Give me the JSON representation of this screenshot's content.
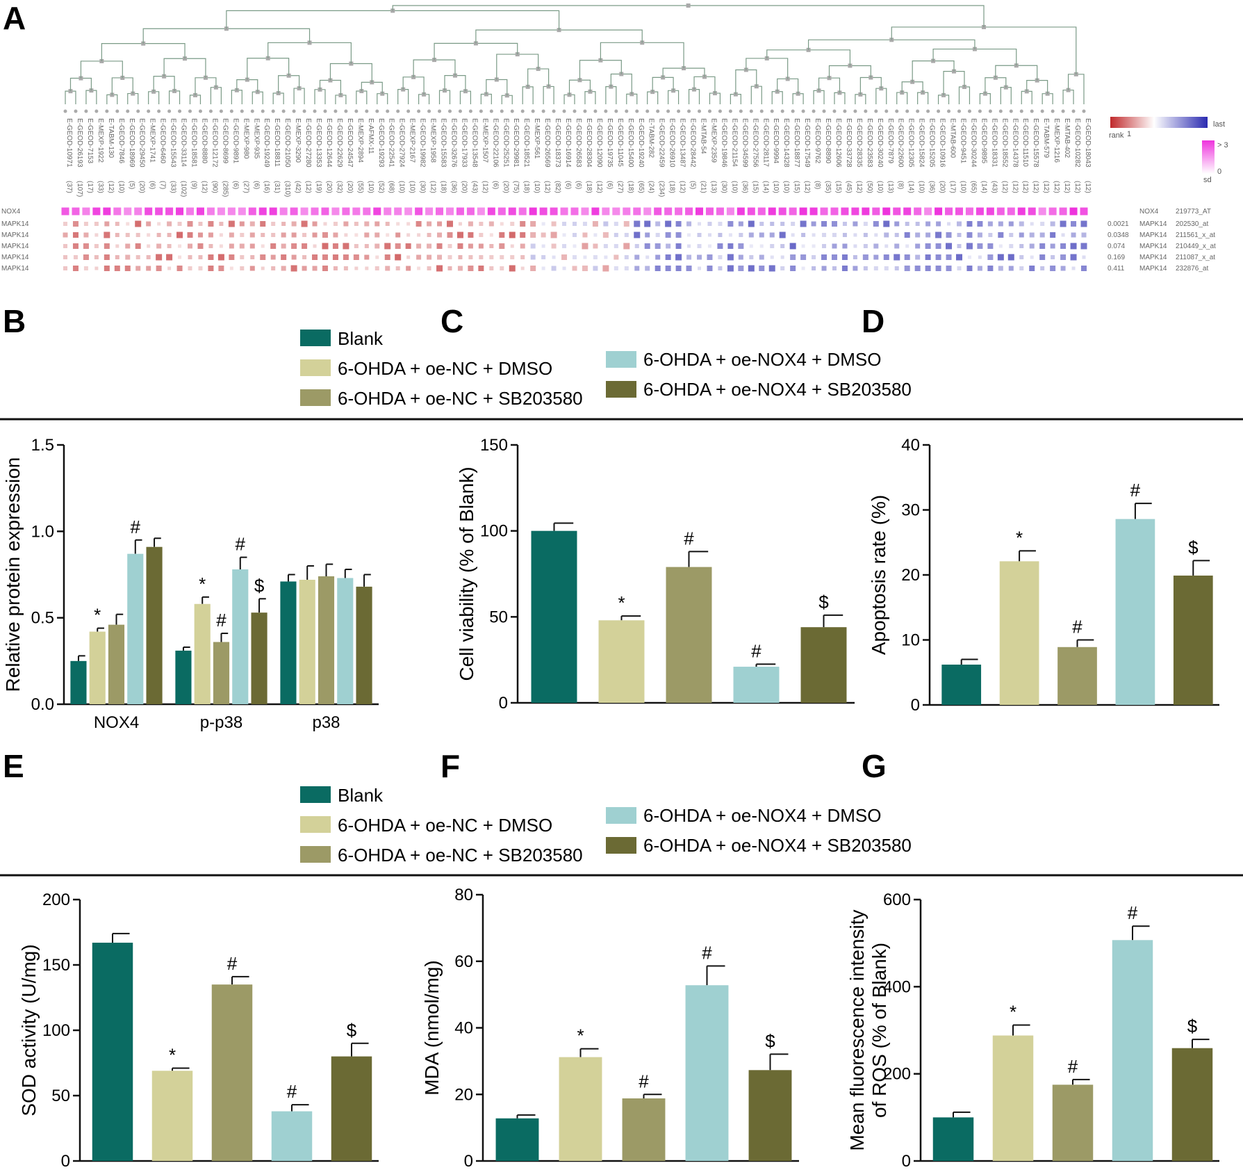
{
  "panel_labels": [
    "A",
    "B",
    "C",
    "D",
    "E",
    "F",
    "G"
  ],
  "colors": {
    "blank": "#0a6b62",
    "nc_dmso": "#d3d199",
    "nc_sb": "#9c9a66",
    "nox4_dmso": "#9fd0d1",
    "nox4_sb": "#6b6a34",
    "heat_red": "#c0292b",
    "heat_blue": "#2a2ab0",
    "heat_magenta": "#ee33dd"
  },
  "legend_bcd": {
    "items": [
      "Blank",
      "6-OHDA + oe-NC + DMSO",
      "6-OHDA + oe-NC + SB203580",
      "6-OHDA + oe-NOX4 + DMSO",
      "6-OHDA + oe-NOX4 + SB203580"
    ]
  },
  "legend_efg": {
    "items": [
      "Blank",
      "6-OHDA + oe-NC + DMSO",
      "6-OHDA + oe-NC + SB203580",
      "6-OHDA + oe-NOX4 + DMSO",
      "6-OHDA + oe-NOX4 + SB203580"
    ]
  },
  "heatmap": {
    "datasets": [
      "E-GEOD-10971",
      "E-GEOD-26193",
      "E-GEOD-7153",
      "E-MEXP-1922",
      "E-TABM-130",
      "E-GEOD-7846",
      "E-GEOD-18969",
      "E-GEOD-29450",
      "E-MEXP-1741",
      "E-GEOD-6460",
      "E-GEOD-15543",
      "E-GEOD-33114",
      "E-GEOD-18581",
      "E-GEOD-8880",
      "E-GEOD-12172",
      "E-GEOD-8699",
      "E-GEOD-9891",
      "E-MEXP-980",
      "E-MEXP-935",
      "E-GEOD-19249",
      "E-GEOD-18811",
      "E-GEOD-21050",
      "E-MEXP-3290",
      "E-GEOD-27280",
      "E-GEOD-13353",
      "E-GEOD-12644",
      "E-GEOD-22629",
      "E-GEOD-24547",
      "E-MEXP-2894",
      "E-AFMX-11",
      "E-GEOD-19293",
      "E-GEOD-22541",
      "E-GEOD-27924",
      "E-MEXP-2167",
      "E-GEOD-19982",
      "E-MEXP-1958",
      "E-GEOD-15583",
      "E-GEOD-32676",
      "E-GEOD-17933",
      "E-GEOD-13548",
      "E-MEXP-1507",
      "E-GEOD-22106",
      "E-GEOD-25251",
      "E-GEOD-29981",
      "E-GEOD-18521",
      "E-MEXP-561",
      "E-GEOD-26569",
      "E-GEOD-18373",
      "E-GEOD-16914",
      "E-GEOD-26583",
      "E-GEOD-28304",
      "E-GEOD-12090",
      "E-GEOD-19735",
      "E-GEOD-11045",
      "E-GEOD-15400",
      "E-GEOD-19240",
      "E-TABM-282",
      "E-GEOD-22459",
      "E-GEOD-26910",
      "E-GEOD-13487",
      "E-GEOD-28442",
      "E-MTAB-54",
      "E-MEXP-2359",
      "E-GEOD-19846",
      "E-GEOD-21154",
      "E-GEOD-34599",
      "E-GEOD-27556",
      "E-GEOD-28117",
      "E-GEOD-9994",
      "E-GEOD-14328",
      "E-GEOD-18877",
      "E-GEOD-17549",
      "E-GEOD-9762",
      "E-GEOD-8890",
      "E-GEOD-12606",
      "E-GEOD-33728",
      "E-GEOD-28335",
      "E-GEOD-23583",
      "E-GEOD-30240",
      "E-GEOD-7879",
      "E-GEOD-22600",
      "E-GEOD-12305",
      "E-GEOD-15824",
      "E-GEOD-15205",
      "E-GEOD-10916",
      "E-MTAB-600",
      "E-GEOD-9451",
      "E-GEOD-30244",
      "E-GEOD-9895",
      "E-GEOD-18331",
      "E-GEOD-18552",
      "E-GEOD-14378",
      "E-GEOD-11510",
      "E-GEOD-15578",
      "E-TABM-579",
      "E-MEXP-1216",
      "E-MTAB-402",
      "E-GEOD-10282",
      "E-GEOD-18043"
    ],
    "counts": [
      "(37)",
      "(107)",
      "(17)",
      "(33)",
      "(12)",
      "(10)",
      "(5)",
      "(20)",
      "(6)",
      "(7)",
      "(33)",
      "(102)",
      "(9)",
      "(12)",
      "(90)",
      "(285)",
      "(6)",
      "(27)",
      "(6)",
      "(16)",
      "(31)",
      "(310)",
      "(42)",
      "(12)",
      "(19)",
      "(20)",
      "(32)",
      "(20)",
      "(55)",
      "(10)",
      "(52)",
      "(68)",
      "(10)",
      "(10)",
      "(30)",
      "(12)",
      "(18)",
      "(36)",
      "(20)",
      "(43)",
      "(12)",
      "(6)",
      "(20)",
      "(75)",
      "(18)",
      "(10)",
      "(12)",
      "(82)",
      "(6)",
      "(6)",
      "(18)",
      "(12)",
      "(6)",
      "(27)",
      "(18)",
      "(65)",
      "(24)",
      "(234)",
      "(18)",
      "(12)",
      "(5)",
      "(21)",
      "(13)",
      "(30)",
      "(10)",
      "(36)",
      "(15)",
      "(14)",
      "(10)",
      "(10)",
      "(15)",
      "(12)",
      "(8)",
      "(35)",
      "(15)",
      "(45)",
      "(12)",
      "(50)",
      "(10)",
      "(13)",
      "(8)",
      "(14)",
      "(10)",
      "(36)",
      "(20)",
      "(17)",
      "(10)",
      "(65)",
      "(14)",
      "(43)",
      "(12)",
      "(12)",
      "(12)",
      "(12)",
      "(12)",
      "(12)",
      "(12)",
      "(12)",
      "(12)"
    ],
    "row_labels": [
      "NOX4",
      "MAPK14",
      "MAPK14",
      "MAPK14",
      "MAPK14",
      "MAPK14"
    ],
    "pvalues": [
      "",
      "0.0021",
      "0.0348",
      "0.074",
      "0.169",
      "0.411"
    ],
    "gene_names": [
      "NOX4",
      "MAPK14",
      "MAPK14",
      "MAPK14",
      "MAPK14",
      "MAPK14"
    ],
    "probes": [
      "219773_AT",
      "202530_at",
      "211561_x_at",
      "210449_x_at",
      "211087_x_at",
      "232876_at"
    ],
    "legend": {
      "rank_low": "1",
      "rank_high": "last",
      "rank_label": "rank",
      "sd_high": "> 3",
      "sd_low": "0",
      "sd_label": "sd"
    }
  },
  "chart_data": [
    {
      "id": "B",
      "type": "bar",
      "categories": [
        "NOX4",
        "p-p38",
        "p38"
      ],
      "series": [
        {
          "name": "Blank",
          "values": [
            0.25,
            0.31,
            0.71
          ],
          "errors": [
            0.03,
            0.02,
            0.04
          ]
        },
        {
          "name": "6-OHDA + oe-NC + DMSO",
          "values": [
            0.42,
            0.58,
            0.72
          ],
          "errors": [
            0.02,
            0.04,
            0.08
          ]
        },
        {
          "name": "6-OHDA + oe-NC + SB203580",
          "values": [
            0.46,
            0.36,
            0.74
          ],
          "errors": [
            0.06,
            0.05,
            0.07
          ]
        },
        {
          "name": "6-OHDA + oe-NOX4 + DMSO",
          "values": [
            0.87,
            0.78,
            0.73
          ],
          "errors": [
            0.08,
            0.07,
            0.05
          ]
        },
        {
          "name": "6-OHDA + oe-NOX4 + SB203580",
          "values": [
            0.91,
            0.53,
            0.68
          ],
          "errors": [
            0.05,
            0.08,
            0.07
          ]
        }
      ],
      "annotations": [
        [
          "",
          "",
          "",
          "",
          " "
        ],
        [
          "",
          "*",
          "#",
          "#",
          "$"
        ],
        [
          "",
          "",
          "",
          "",
          ""
        ]
      ],
      "ann_by_cat": {
        "NOX4": {
          "1": "*",
          "3": "#"
        },
        "p-p38": {
          "1": "*",
          "2": "#",
          "3": "#",
          "4": "$"
        }
      },
      "ylabel": "Relative protein expression",
      "ylim": [
        0,
        1.5
      ],
      "yticks": [
        "0.0",
        "0.5",
        "1.0",
        "1.5"
      ]
    },
    {
      "id": "C",
      "type": "bar",
      "categories": [
        "Blank",
        "6-OHDA + oe-NC + DMSO",
        "6-OHDA + oe-NC + SB203580",
        "6-OHDA + oe-NOX4 + DMSO",
        "6-OHDA + oe-NOX4 + SB203580"
      ],
      "values": [
        100,
        48,
        79,
        21,
        44
      ],
      "errors": [
        4.5,
        2.5,
        9,
        1.5,
        7
      ],
      "annotations": [
        "",
        "*",
        "#",
        "#",
        "$"
      ],
      "ylabel": "Cell viability (% of Blank)",
      "ylim": [
        0,
        150
      ],
      "yticks": [
        "0",
        "50",
        "100",
        "150"
      ]
    },
    {
      "id": "D",
      "type": "bar",
      "categories": [
        "Blank",
        "6-OHDA + oe-NC + DMSO",
        "6-OHDA + oe-NC + SB203580",
        "6-OHDA + oe-NOX4 + DMSO",
        "6-OHDA + oe-NOX4 + SB203580"
      ],
      "values": [
        6.2,
        22.1,
        8.9,
        28.6,
        19.9
      ],
      "errors": [
        0.8,
        1.6,
        1.1,
        2.4,
        2.3
      ],
      "annotations": [
        "",
        "*",
        "#",
        "#",
        "$"
      ],
      "ylabel": "Apoptosis rate (%)",
      "ylim": [
        0,
        40
      ],
      "yticks": [
        "0",
        "10",
        "20",
        "30",
        "40"
      ]
    },
    {
      "id": "E",
      "type": "bar",
      "categories": [
        "Blank",
        "6-OHDA + oe-NC + DMSO",
        "6-OHDA + oe-NC + SB203580",
        "6-OHDA + oe-NOX4 + DMSO",
        "6-OHDA + oe-NOX4 + SB203580"
      ],
      "values": [
        167,
        69,
        135,
        38,
        80
      ],
      "errors": [
        7,
        2,
        6,
        5,
        10
      ],
      "annotations": [
        "",
        "*",
        "#",
        "#",
        "$"
      ],
      "ylabel": "SOD activity (U/mg)",
      "ylim": [
        0,
        200
      ],
      "yticks": [
        "0",
        "50",
        "100",
        "150",
        "200"
      ]
    },
    {
      "id": "F",
      "type": "bar",
      "categories": [
        "Blank",
        "6-OHDA + oe-NC + DMSO",
        "6-OHDA + oe-NC + SB203580",
        "6-OHDA + oe-NOX4 + DMSO",
        "6-OHDA + oe-NOX4 + SB203580"
      ],
      "values": [
        12.8,
        31.2,
        18.8,
        52.8,
        27.3
      ],
      "errors": [
        1.0,
        2.5,
        1.2,
        5.8,
        4.8
      ],
      "annotations": [
        "",
        "*",
        "#",
        "#",
        "$"
      ],
      "ylabel": "MDA (nmol/mg)",
      "ylim": [
        0,
        80
      ],
      "yticks": [
        "0",
        "20",
        "40",
        "60",
        "80"
      ]
    },
    {
      "id": "G",
      "type": "bar",
      "categories": [
        "Blank",
        "6-OHDA + oe-NC + DMSO",
        "6-OHDA + oe-NC + SB203580",
        "6-OHDA + oe-NOX4 + DMSO",
        "6-OHDA + oe-NOX4 + SB203580"
      ],
      "values": [
        100,
        288,
        175,
        507,
        259
      ],
      "errors": [
        12,
        24,
        12,
        32,
        20
      ],
      "annotations": [
        "",
        "*",
        "#",
        "#",
        "$"
      ],
      "ylabel": "Mean fluorescence intensity",
      "ylabel2": "of ROS (% of Blank)",
      "ylim": [
        0,
        600
      ],
      "yticks": [
        "0",
        "200",
        "400",
        "600"
      ]
    }
  ]
}
